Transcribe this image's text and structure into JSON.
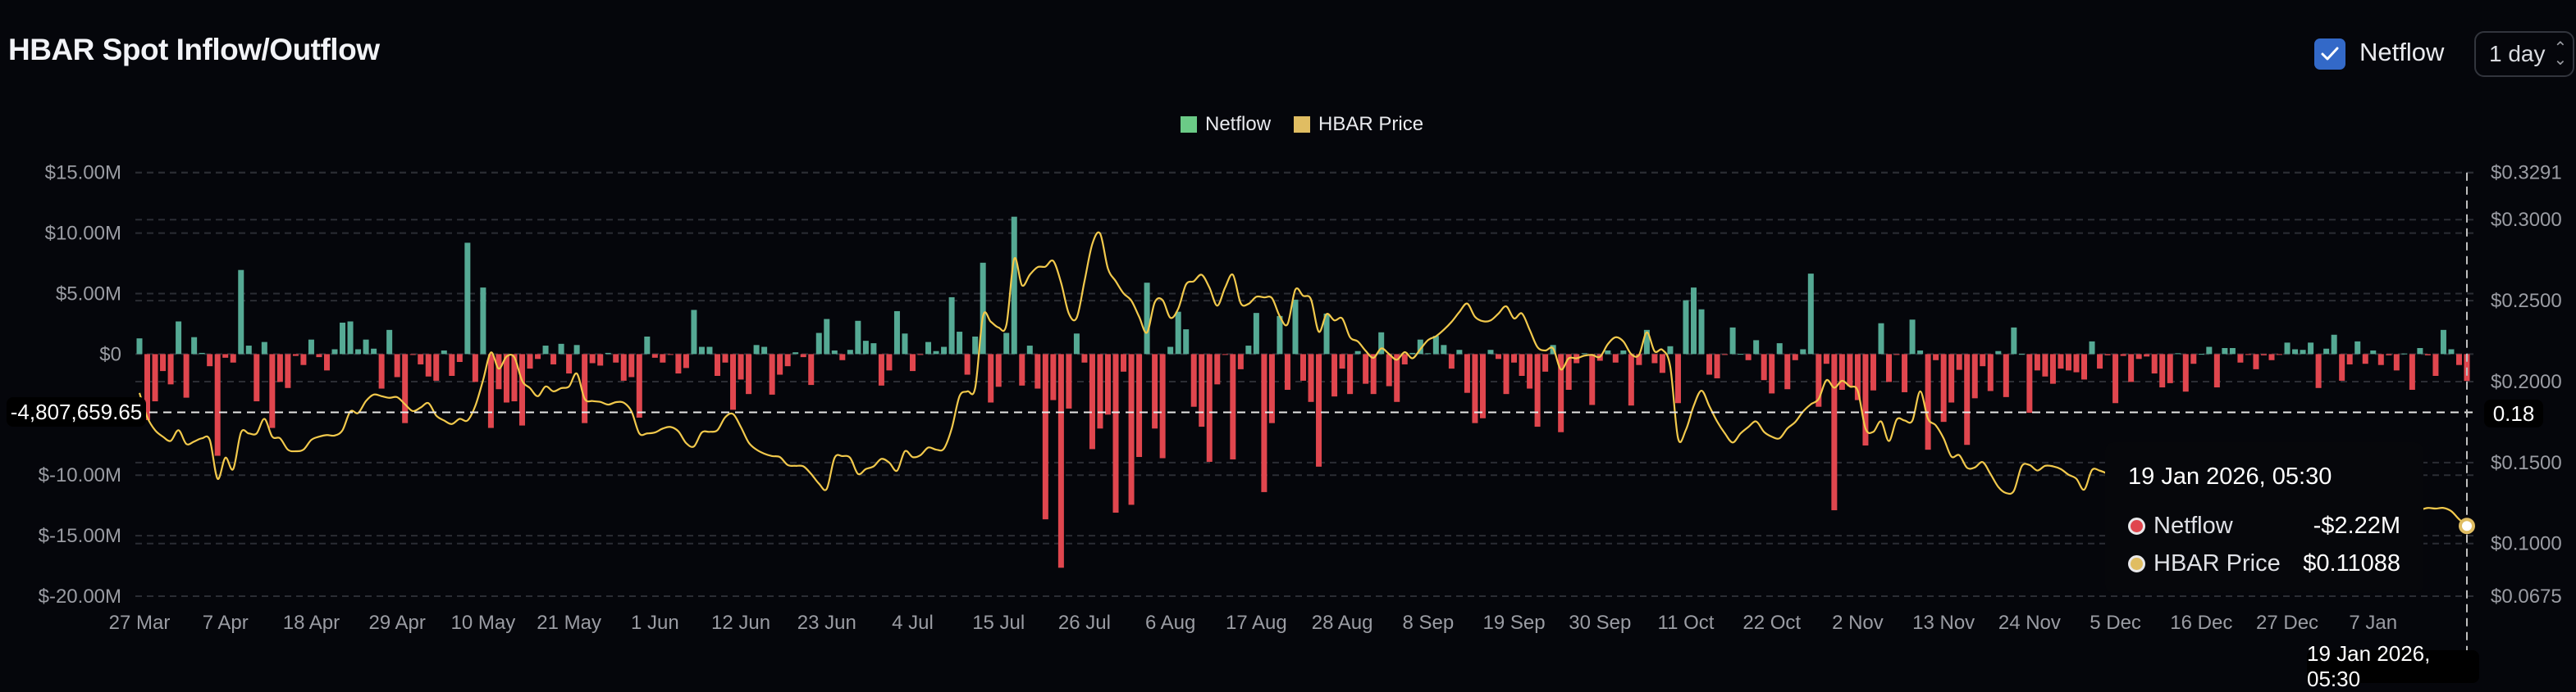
{
  "header": {
    "title": "HBAR Spot Inflow/Outflow",
    "netflow_toggle_label": "Netflow",
    "netflow_toggle_checked": true,
    "interval_select_value": "1 day"
  },
  "legend": [
    {
      "label": "Netflow",
      "color": "#6bcb87"
    },
    {
      "label": "HBAR Price",
      "color": "#e0bd62"
    }
  ],
  "crosshair": {
    "left_value": "-4,807,659.65",
    "right_value": "0.18",
    "date_label": "19 Jan 2026, 05:30"
  },
  "tooltip": {
    "title": "19 Jan 2026, 05:30",
    "rows": [
      {
        "label": "Netflow",
        "value": "-$2.22M",
        "dot_color": "#e0464e"
      },
      {
        "label": "HBAR Price",
        "value": "$0.11088",
        "dot_color": "#e0bd62"
      }
    ]
  },
  "colors": {
    "inflow": "#55a994",
    "outflow": "#e0464e",
    "price": "#f2c94c",
    "checkbox": "#3369c8"
  },
  "chart_data": {
    "type": "bar+line",
    "title": "HBAR Spot Inflow/Outflow",
    "interval": "1 day",
    "x_tick_labels": [
      "27 Mar",
      "7 Apr",
      "18 Apr",
      "29 Apr",
      "10 May",
      "21 May",
      "1 Jun",
      "12 Jun",
      "23 Jun",
      "4 Jul",
      "15 Jul",
      "26 Jul",
      "6 Aug",
      "17 Aug",
      "28 Aug",
      "8 Sep",
      "19 Sep",
      "30 Sep",
      "11 Oct",
      "22 Oct",
      "2 Nov",
      "13 Nov",
      "24 Nov",
      "5 Dec",
      "16 Dec",
      "27 Dec",
      "7 Jan"
    ],
    "y_left": {
      "unit": "USD millions",
      "range": [
        -20,
        15
      ],
      "tick_labels": [
        "$15.00M",
        "$10.00M",
        "$5.00M",
        "$0",
        "$-10.00M",
        "$-15.00M",
        "$-20.00M"
      ],
      "ticks": [
        15,
        10,
        5,
        0,
        -10,
        -15,
        -20
      ]
    },
    "y_right": {
      "unit": "USD",
      "range": [
        0.0675,
        0.3291
      ],
      "tick_labels": [
        "$0.3291",
        "$0.3000",
        "$0.2500",
        "$0.2000",
        "$0.1500",
        "$0.1000",
        "$0.0675"
      ],
      "ticks": [
        0.3291,
        0.3,
        0.25,
        0.2,
        0.15,
        0.1,
        0.0675
      ]
    },
    "grid": true,
    "legend_position": "top-center",
    "series": [
      {
        "name": "Netflow",
        "axis": "left",
        "type": "bar",
        "values": [
          1.3,
          -5.45,
          -3.9,
          -1.4,
          -2.5,
          2.7,
          -3.6,
          1.4,
          0.1,
          -1.0,
          -8.4,
          -0.3,
          -0.7,
          6.95,
          0.7,
          -3.9,
          1.0,
          -6.1,
          -2.3,
          -2.8,
          -0.15,
          -0.9,
          1.2,
          -0.25,
          -1.35,
          0.4,
          2.6,
          2.7,
          0.4,
          1.2,
          0.45,
          -2.85,
          2.0,
          -1.9,
          -5.7,
          -0.07,
          -0.85,
          -1.85,
          -2.2,
          0.3,
          -1.8,
          -0.65,
          9.2,
          -2.3,
          5.5,
          -6.1,
          -2.9,
          -4.0,
          -3.9,
          -5.9,
          -1.2,
          -0.4,
          0.7,
          -0.85,
          0.85,
          -1.6,
          0.75,
          -5.7,
          -0.75,
          -0.95,
          0.1,
          -0.7,
          -2.2,
          -1.9,
          -5.25,
          1.45,
          -0.3,
          -0.7,
          -0.05,
          -1.6,
          -1.15,
          3.65,
          0.6,
          0.6,
          -1.8,
          -0.7,
          -4.6,
          -2.1,
          -3.3,
          0.75,
          0.6,
          -3.35,
          -1.7,
          -1.0,
          0.15,
          -0.25,
          -2.55,
          1.75,
          2.9,
          0.3,
          -0.5,
          0.35,
          2.75,
          1.1,
          0.9,
          -2.6,
          -1.35,
          3.55,
          1.7,
          -1.4,
          -0.05,
          1.0,
          0.25,
          0.6,
          4.7,
          1.85,
          -1.7,
          1.45,
          7.55,
          -4.0,
          -2.7,
          1.75,
          11.35,
          -2.6,
          0.7,
          -2.85,
          -13.65,
          -3.8,
          -17.65,
          -4.5,
          1.7,
          -0.7,
          -7.85,
          -6.15,
          -5.0,
          -13.1,
          -1.45,
          -12.45,
          -8.5,
          5.9,
          -6.15,
          -8.6,
          0.6,
          3.5,
          2.05,
          -4.35,
          -6.0,
          -8.9,
          -2.5,
          -0.05,
          -8.7,
          -1.25,
          0.7,
          3.4,
          -11.4,
          -5.7,
          3.15,
          -2.95,
          4.5,
          -2.2,
          -3.95,
          -9.3,
          3.35,
          -3.5,
          -1.2,
          -3.3,
          0.25,
          -2.45,
          -3.3,
          1.8,
          -2.65,
          -3.95,
          -0.85,
          0.1,
          1.2,
          0.07,
          1.5,
          0.75,
          -1.2,
          0.35,
          -3.2,
          -5.7,
          -5.3,
          0.35,
          -0.4,
          -3.3,
          -0.7,
          -1.8,
          -2.85,
          -6.0,
          -1.45,
          0.75,
          -6.45,
          -2.95,
          -0.75,
          0.07,
          -4.2,
          -0.55,
          0.3,
          -0.7,
          0.3,
          -4.25,
          -0.9,
          2.0,
          -0.75,
          -1.55,
          0.65,
          -4.05,
          4.45,
          5.5,
          3.7,
          -1.7,
          -2.0,
          -0.05,
          2.2,
          0.02,
          -0.5,
          1.15,
          -2.15,
          -3.25,
          0.9,
          -2.9,
          -0.5,
          0.4,
          6.65,
          -4.35,
          -0.8,
          -12.9,
          -2.95,
          -2.65,
          -3.8,
          -7.55,
          -3.0,
          2.55,
          -2.3,
          -0.05,
          -3.15,
          2.85,
          0.3,
          -7.9,
          -0.5,
          -5.6,
          -4.0,
          -1.3,
          -7.5,
          -3.65,
          -1.0,
          -3.05,
          0.25,
          -3.55,
          2.2,
          0.02,
          -4.85,
          -1.35,
          -1.85,
          -2.45,
          -1.2,
          -1.35,
          -1.5,
          -2.1,
          1.05,
          -1.2,
          -0.1,
          -4.05,
          -0.15,
          -2.3,
          -0.4,
          -0.2,
          -1.6,
          -2.75,
          -2.4,
          0.07,
          -3.1,
          -0.8,
          0.02,
          0.6,
          -2.75,
          0.5,
          0.5,
          -0.7,
          -0.07,
          -1.25,
          -0.1,
          -0.5,
          -0.02,
          0.95,
          0.4,
          0.35,
          0.95,
          -2.8,
          0.45,
          1.6,
          -2.2,
          -0.85,
          1.05,
          -0.8,
          0.3,
          -0.9,
          -0.1,
          -1.35,
          0.05,
          -2.95,
          0.5,
          -0.1,
          -1.8,
          2.0,
          0.4,
          -0.9,
          -2.22
        ]
      },
      {
        "name": "HBAR Price",
        "axis": "right",
        "type": "line",
        "values": [
          0.193,
          0.178,
          0.17,
          0.166,
          0.1634,
          0.17,
          0.1615,
          0.163,
          0.165,
          0.164,
          0.14,
          0.153,
          0.146,
          0.1686,
          0.168,
          0.168,
          0.177,
          0.166,
          0.165,
          0.158,
          0.157,
          0.158,
          0.164,
          0.166,
          0.167,
          0.1667,
          0.17,
          0.1816,
          0.1806,
          0.188,
          0.192,
          0.191,
          0.19,
          0.1904,
          0.186,
          0.1818,
          0.184,
          0.1867,
          0.179,
          0.176,
          0.1738,
          0.177,
          0.176,
          0.185,
          0.201,
          0.218,
          0.208,
          0.2155,
          0.215,
          0.2005,
          0.196,
          0.191,
          0.197,
          0.194,
          0.196,
          0.197,
          0.205,
          0.1894,
          0.188,
          0.1875,
          0.1858,
          0.1873,
          0.187,
          0.1816,
          0.168,
          0.168,
          0.1686,
          0.171,
          0.172,
          0.1693,
          0.162,
          0.16,
          0.1686,
          0.169,
          0.17,
          0.178,
          0.18,
          0.172,
          0.1624,
          0.158,
          0.1555,
          0.154,
          0.1534,
          0.1485,
          0.148,
          0.1477,
          0.143,
          0.137,
          0.1338,
          0.1529,
          0.154,
          0.1529,
          0.143,
          0.146,
          0.1477,
          0.1523,
          0.15,
          0.145,
          0.157,
          0.1534,
          0.1546,
          0.1593,
          0.158,
          0.1586,
          0.171,
          0.191,
          0.194,
          0.196,
          0.2403,
          0.237,
          0.2334,
          0.235,
          0.2758,
          0.2594,
          0.266,
          0.2707,
          0.271,
          0.2745,
          0.2611,
          0.242,
          0.2394,
          0.262,
          0.285,
          0.2914,
          0.2698,
          0.262,
          0.2545,
          0.25,
          0.24,
          0.2303,
          0.249,
          0.2503,
          0.2394,
          0.245,
          0.26,
          0.262,
          0.266,
          0.258,
          0.2469,
          0.258,
          0.266,
          0.2485,
          0.248,
          0.2524,
          0.252,
          0.2516,
          0.2404,
          0.2355,
          0.2568,
          0.253,
          0.2508,
          0.2308,
          0.2417,
          0.2378,
          0.239,
          0.2274,
          0.2248,
          0.219,
          0.2147,
          0.2205,
          0.217,
          0.2135,
          0.2182,
          0.2144,
          0.22,
          0.2257,
          0.228,
          0.232,
          0.2369,
          0.243,
          0.2482,
          0.24,
          0.2373,
          0.2378,
          0.242,
          0.2465,
          0.239,
          0.2421,
          0.232,
          0.2213,
          0.2192,
          0.2205,
          0.2075,
          0.2144,
          0.2144,
          0.216,
          0.2165,
          0.2153,
          0.2231,
          0.2274,
          0.2248,
          0.217,
          0.2165,
          0.2304,
          0.2187,
          0.2196,
          0.2092,
          0.165,
          0.1702,
          0.185,
          0.1944,
          0.1849,
          0.1754,
          0.168,
          0.1624,
          0.168,
          0.172,
          0.1754,
          0.169,
          0.166,
          0.165,
          0.1711,
          0.175,
          0.1815,
          0.186,
          0.1893,
          0.2009,
          0.1962,
          0.2005,
          0.197,
          0.1944,
          0.1711,
          0.169,
          0.1754,
          0.1633,
          0.1766,
          0.176,
          0.1759,
          0.194,
          0.1771,
          0.173,
          0.165,
          0.1537,
          0.1546,
          0.1468,
          0.147,
          0.1503,
          0.143,
          0.135,
          0.1312,
          0.1326,
          0.1477,
          0.1485,
          0.1451,
          0.148,
          0.1477,
          0.146,
          0.1425,
          0.14,
          0.1333,
          0.1454,
          0.145,
          0.143,
          0.14,
          0.138,
          0.141,
          0.139,
          0.136,
          0.134,
          0.133,
          0.131,
          0.13,
          0.128,
          0.129,
          0.131,
          0.13,
          0.128,
          0.126,
          0.125,
          0.127,
          0.126,
          0.124,
          0.123,
          0.125,
          0.127,
          0.126,
          0.128,
          0.13,
          0.134,
          0.136,
          0.137,
          0.135,
          0.133,
          0.131,
          0.13,
          0.128,
          0.127,
          0.125,
          0.124,
          0.123,
          0.122,
          0.122,
          0.121,
          0.122,
          0.1216,
          0.122,
          0.12,
          0.115,
          0.11088
        ]
      }
    ]
  }
}
